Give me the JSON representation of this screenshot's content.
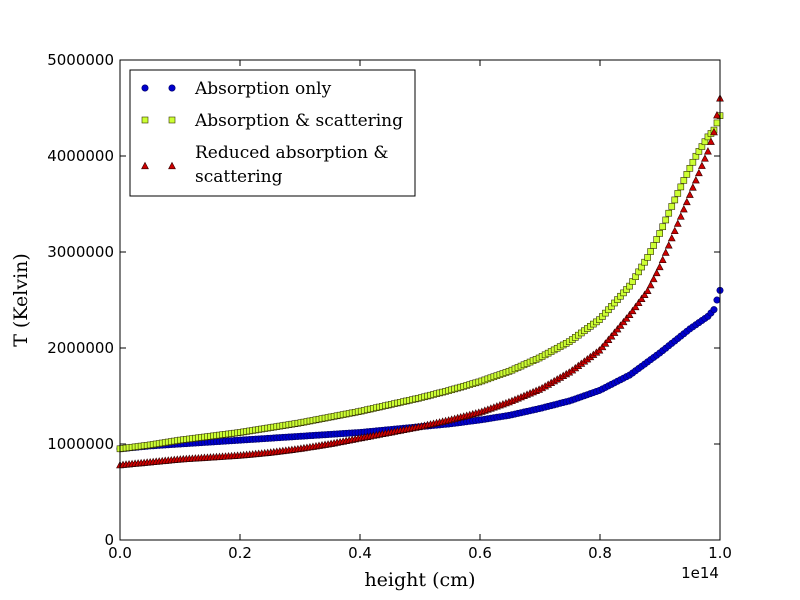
{
  "chart_data": {
    "type": "scatter",
    "title": "",
    "xlabel": "height (cm)",
    "ylabel": "T (Kelvin)",
    "x_offset_label": "1e14",
    "xlim": [
      0.0,
      1.0
    ],
    "ylim": [
      0,
      5000000
    ],
    "xticks": [
      0.0,
      0.2,
      0.4,
      0.6,
      0.8,
      1.0
    ],
    "xtick_labels": [
      "0.0",
      "0.2",
      "0.4",
      "0.6",
      "0.8",
      "1.0"
    ],
    "yticks": [
      0,
      1000000,
      2000000,
      3000000,
      4000000,
      5000000
    ],
    "ytick_labels": [
      "0",
      "1000000",
      "2000000",
      "3000000",
      "4000000",
      "5000000"
    ],
    "legend_position": "top-left",
    "series": [
      {
        "name": "Absorption only",
        "legend_lines": [
          "Absorption only"
        ],
        "marker": "circle",
        "color": "#0000cc",
        "stroke": "#000066",
        "x": [
          0.0,
          0.05,
          0.1,
          0.15,
          0.2,
          0.25,
          0.3,
          0.35,
          0.4,
          0.45,
          0.5,
          0.55,
          0.6,
          0.65,
          0.7,
          0.75,
          0.8,
          0.85,
          0.9,
          0.95,
          0.98,
          0.99,
          1.0
        ],
        "y": [
          950000,
          980000,
          1000000,
          1020000,
          1040000,
          1060000,
          1080000,
          1100000,
          1120000,
          1150000,
          1180000,
          1210000,
          1250000,
          1300000,
          1370000,
          1450000,
          1560000,
          1720000,
          1950000,
          2200000,
          2330000,
          2400000,
          2600000
        ]
      },
      {
        "name": "Absorption & scattering",
        "legend_lines": [
          "Absorption & scattering"
        ],
        "marker": "square",
        "color": "#ccff33",
        "stroke": "#333300",
        "x": [
          0.0,
          0.05,
          0.1,
          0.15,
          0.2,
          0.25,
          0.3,
          0.35,
          0.4,
          0.45,
          0.5,
          0.55,
          0.6,
          0.65,
          0.7,
          0.75,
          0.8,
          0.85,
          0.88,
          0.9,
          0.92,
          0.94,
          0.96,
          0.98,
          0.99,
          1.0
        ],
        "y": [
          950000,
          990000,
          1040000,
          1080000,
          1120000,
          1170000,
          1220000,
          1280000,
          1340000,
          1410000,
          1480000,
          1560000,
          1650000,
          1760000,
          1900000,
          2070000,
          2300000,
          2650000,
          2950000,
          3200000,
          3480000,
          3750000,
          4000000,
          4200000,
          4270000,
          4420000
        ]
      },
      {
        "name": "Reduced absorption & scattering",
        "legend_lines": [
          "Reduced absorption &",
          "scattering"
        ],
        "marker": "triangle",
        "color": "#cc0000",
        "stroke": "#330000",
        "x": [
          0.0,
          0.05,
          0.1,
          0.15,
          0.2,
          0.25,
          0.3,
          0.35,
          0.4,
          0.45,
          0.5,
          0.55,
          0.6,
          0.65,
          0.7,
          0.75,
          0.8,
          0.85,
          0.88,
          0.9,
          0.92,
          0.94,
          0.96,
          0.98,
          0.99,
          1.0
        ],
        "y": [
          780000,
          810000,
          840000,
          860000,
          880000,
          910000,
          950000,
          1000000,
          1060000,
          1120000,
          1180000,
          1250000,
          1330000,
          1440000,
          1570000,
          1750000,
          1980000,
          2350000,
          2600000,
          2850000,
          3150000,
          3450000,
          3750000,
          4050000,
          4250000,
          4600000
        ]
      }
    ]
  }
}
